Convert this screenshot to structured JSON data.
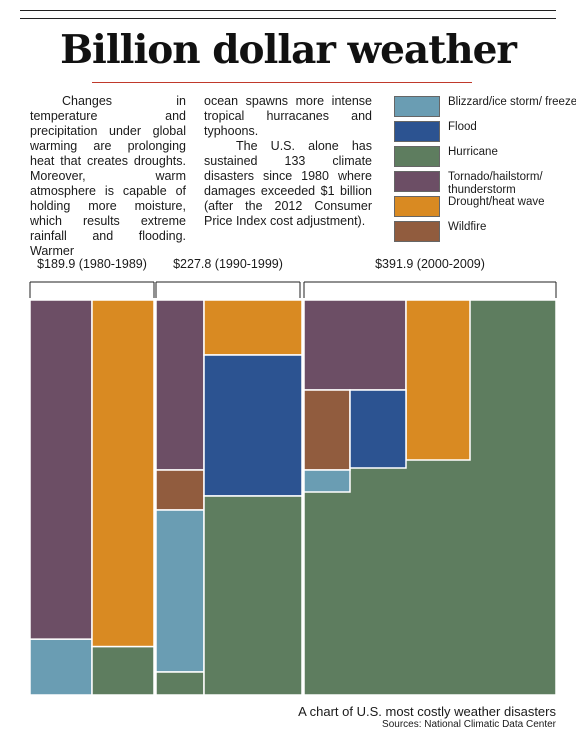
{
  "title": "Billion dollar weather",
  "intro": {
    "col1": "Changes in temperature and precipitation under global warming are prolonging heat that creates droughts. Moreover, warm atmosphere is capable of holding more moisture, which results extreme rainfall and flooding. Warmer",
    "col2a": "ocean spawns more intense tropical hurracanes and typhoons.",
    "col2b": "The U.S. alone has sustained 133 climate disasters since 1980 where damages exceeded $1 billion (after the 2012 Consumer Price Index cost adjustment)."
  },
  "caption": "A chart of U.S. most costly weather disasters",
  "source": "Sources: National Climatic Data Center",
  "chart_data": {
    "type": "treemap",
    "unit": "billions of dollars",
    "legend_position": "top-right",
    "categories": [
      {
        "key": "blizzard",
        "label": "Blizzard/ice storm/ freeze",
        "color": "#6a9db3"
      },
      {
        "key": "flood",
        "label": "Flood",
        "color": "#2c5391"
      },
      {
        "key": "hurricane",
        "label": "Hurricane",
        "color": "#5e7d5f"
      },
      {
        "key": "tornado",
        "label": "Tornado/hailstorm/ thunderstorm",
        "color": "#6c4e65"
      },
      {
        "key": "drought",
        "label": "Drought/heat wave",
        "color": "#d98a22"
      },
      {
        "key": "wildfire",
        "label": "Wildfire",
        "color": "#915c3e"
      }
    ],
    "decades": [
      {
        "label": "$189.9 (1980-1989)",
        "total": 189.9,
        "values": {
          "tornado": 79,
          "drought": 86,
          "blizzard": 13,
          "hurricane": 12
        }
      },
      {
        "label": "$227.8 (1990-1999)",
        "total": 227.8,
        "values": {
          "tornado": 24,
          "wildfire": 6,
          "blizzard": 23,
          "drought": 16,
          "flood": 43,
          "hurricane": 116
        }
      },
      {
        "label": "$391.9 (2000-2009)",
        "total": 391.9,
        "values": {
          "tornado": 35,
          "wildfire": 13,
          "flood": 15,
          "blizzard": 3.5,
          "drought": 36,
          "hurricane": 289
        }
      }
    ]
  }
}
